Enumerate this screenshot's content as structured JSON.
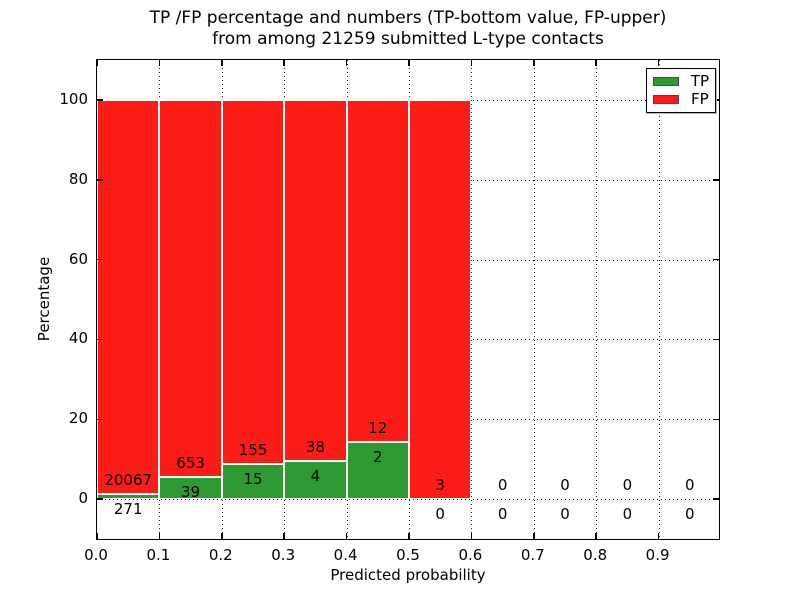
{
  "figure": {
    "title_line1": "TP /FP percentage and numbers (TP-bottom value, FP-upper)",
    "title_line2": "from among 21259 submitted L-type contacts",
    "xlabel": "Predicted probability",
    "ylabel": "Percentage"
  },
  "legend": {
    "position": "upper right",
    "entries": [
      {
        "label": "TP",
        "color": "#2e9b32"
      },
      {
        "label": "FP",
        "color": "#fb1b17"
      }
    ]
  },
  "chart_data": {
    "type": "bar",
    "stacked": true,
    "normalized_to_percent": true,
    "title": "TP /FP percentage and numbers (TP-bottom value, FP-upper) from among 21259 submitted L-type contacts",
    "xlabel": "Predicted probability",
    "ylabel": "Percentage",
    "total_submitted": 21259,
    "bin_width": 0.1,
    "bin_starts": [
      0.0,
      0.1,
      0.2,
      0.3,
      0.4,
      0.5,
      0.6,
      0.7,
      0.8,
      0.9
    ],
    "series": [
      {
        "name": "TP",
        "color": "#2e9b32",
        "counts": [
          271,
          39,
          15,
          4,
          2,
          0,
          0,
          0,
          0,
          0
        ]
      },
      {
        "name": "FP",
        "color": "#fb1b17",
        "counts": [
          20067,
          653,
          155,
          38,
          12,
          3,
          0,
          0,
          0,
          0
        ]
      }
    ],
    "bar_total_percent": 100,
    "xlim": [
      0.0,
      1.0
    ],
    "ylim": [
      -10.5,
      110
    ],
    "x_ticks": [
      0.0,
      0.1,
      0.2,
      0.3,
      0.4,
      0.5,
      0.6,
      0.7,
      0.8,
      0.9
    ],
    "x_tick_labels": [
      "0.0",
      "0.1",
      "0.2",
      "0.3",
      "0.4",
      "0.5",
      "0.6",
      "0.7",
      "0.8",
      "0.9"
    ],
    "y_ticks": [
      0,
      20,
      40,
      60,
      80,
      100
    ],
    "y_tick_labels": [
      "0",
      "20",
      "40",
      "60",
      "80",
      "100"
    ],
    "grid": true,
    "grid_style": "dotted",
    "bar_edge_color": "#ffffff",
    "legend_position": "upper right"
  }
}
